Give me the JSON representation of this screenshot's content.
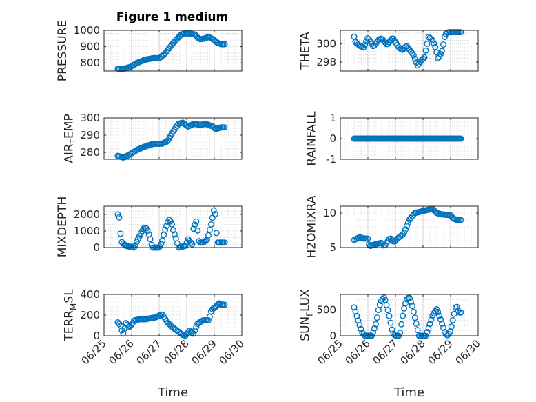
{
  "figure": {
    "title": "Figure 1 medium",
    "xlabel": "Time"
  },
  "style": {
    "marker_color": "#0072BD",
    "axes_color": "#262626",
    "grid_color": "#c8c8c8",
    "background": "#ffffff"
  },
  "chart_data": [
    {
      "type": "scatter",
      "marker": "open-circle",
      "grid": "on",
      "title": "Figure 1 medium",
      "xlabel": "",
      "ylabel": "PRESSURE",
      "xlim": [
        "06/25",
        "06/30"
      ],
      "ylim": [
        750,
        1000
      ],
      "yticks": [
        800,
        900,
        1000
      ],
      "xticks": [
        "06/25",
        "06/26",
        "06/27",
        "06/28",
        "06/29",
        "06/30"
      ],
      "show_xticklabels": false,
      "x_range": [
        "06/25 12:00",
        "06/29 09:00"
      ],
      "keypoints": [
        [
          0,
          765
        ],
        [
          0.2,
          763
        ],
        [
          0.45,
          775
        ],
        [
          0.7,
          800
        ],
        [
          1.0,
          820
        ],
        [
          1.3,
          830
        ],
        [
          1.5,
          828
        ],
        [
          1.7,
          855
        ],
        [
          2.0,
          920
        ],
        [
          2.3,
          975
        ],
        [
          2.5,
          983
        ],
        [
          2.8,
          975
        ],
        [
          2.9,
          955
        ],
        [
          3.0,
          945
        ],
        [
          3.15,
          950
        ],
        [
          3.3,
          960
        ],
        [
          3.5,
          940
        ],
        [
          3.6,
          925
        ],
        [
          3.75,
          915
        ]
      ]
    },
    {
      "type": "scatter",
      "marker": "open-circle",
      "grid": "on",
      "title": "",
      "xlabel": "",
      "ylabel": "THETA",
      "xlim": [
        "06/25",
        "06/30"
      ],
      "ylim": [
        297,
        301.5
      ],
      "yticks": [
        298,
        300
      ],
      "xticks": [
        "06/25",
        "06/26",
        "06/27",
        "06/28",
        "06/29",
        "06/30"
      ],
      "show_xticklabels": false,
      "x_range": [
        "06/25 12:00",
        "06/29 09:00"
      ],
      "keypoints": [
        [
          0,
          300.8
        ],
        [
          0.05,
          300.2
        ],
        [
          0.2,
          299.8
        ],
        [
          0.35,
          299.6
        ],
        [
          0.5,
          300.7
        ],
        [
          0.7,
          299.7
        ],
        [
          0.9,
          300.5
        ],
        [
          1.0,
          300.6
        ],
        [
          1.2,
          299.9
        ],
        [
          1.4,
          300.7
        ],
        [
          1.6,
          299.7
        ],
        [
          1.75,
          299.3
        ],
        [
          1.9,
          299.8
        ],
        [
          2.05,
          299.2
        ],
        [
          2.15,
          298.8
        ],
        [
          2.3,
          297.6
        ],
        [
          2.45,
          298.2
        ],
        [
          2.55,
          298.5
        ],
        [
          2.7,
          300.8
        ],
        [
          2.85,
          300.4
        ],
        [
          2.95,
          299.6
        ],
        [
          3.05,
          298.3
        ],
        [
          3.2,
          299.3
        ],
        [
          3.3,
          301.0
        ],
        [
          3.4,
          301.3
        ]
      ]
    },
    {
      "type": "scatter",
      "marker": "open-circle",
      "grid": "on",
      "title": "",
      "xlabel": "",
      "ylabel": "AIR_TEMP",
      "xlim": [
        "06/25",
        "06/30"
      ],
      "ylim": [
        276,
        300
      ],
      "yticks": [
        280,
        290,
        300
      ],
      "xticks": [
        "06/25",
        "06/26",
        "06/27",
        "06/28",
        "06/29",
        "06/30"
      ],
      "show_xticklabels": false,
      "x_range": [
        "06/25 12:00",
        "06/29 09:00"
      ],
      "keypoints": [
        [
          0,
          278
        ],
        [
          0.2,
          277
        ],
        [
          0.4,
          278.5
        ],
        [
          0.7,
          281.5
        ],
        [
          1.0,
          283.5
        ],
        [
          1.3,
          285
        ],
        [
          1.6,
          285
        ],
        [
          1.8,
          286.5
        ],
        [
          2.0,
          292
        ],
        [
          2.2,
          296.5
        ],
        [
          2.35,
          297.3
        ],
        [
          2.55,
          295
        ],
        [
          2.75,
          296.5
        ],
        [
          3.0,
          296
        ],
        [
          3.2,
          296.5
        ],
        [
          3.45,
          295
        ],
        [
          3.55,
          293.5
        ],
        [
          3.75,
          294.5
        ]
      ]
    },
    {
      "type": "scatter",
      "marker": "open-circle",
      "grid": "on",
      "title": "",
      "xlabel": "",
      "ylabel": "RAINFALL",
      "xlim": [
        "06/25",
        "06/30"
      ],
      "ylim": [
        -1,
        1
      ],
      "yticks": [
        -1,
        0,
        1
      ],
      "xticks": [
        "06/25",
        "06/26",
        "06/27",
        "06/28",
        "06/29",
        "06/30"
      ],
      "show_xticklabels": false,
      "x_range": [
        "06/25 12:00",
        "06/29 09:00"
      ],
      "keypoints": [
        [
          0,
          0
        ],
        [
          3.75,
          0
        ]
      ]
    },
    {
      "type": "scatter",
      "marker": "open-circle",
      "grid": "on",
      "title": "",
      "xlabel": "",
      "ylabel": "MIXDEPTH",
      "xlim": [
        "06/25",
        "06/30"
      ],
      "ylim": [
        0,
        2500
      ],
      "yticks": [
        0,
        1000,
        2000
      ],
      "xticks": [
        "06/25",
        "06/26",
        "06/27",
        "06/28",
        "06/29",
        "06/30"
      ],
      "show_xticklabels": false,
      "x_range": [
        "06/25 12:00",
        "06/29 09:00"
      ],
      "keypoints": [
        [
          0,
          2000
        ],
        [
          0.03,
          2200
        ],
        [
          0.1,
          800
        ],
        [
          0.15,
          300
        ],
        [
          0.3,
          100
        ],
        [
          0.45,
          50
        ],
        [
          0.6,
          0
        ],
        [
          0.7,
          400
        ],
        [
          0.85,
          900
        ],
        [
          0.95,
          1200
        ],
        [
          1.05,
          1150
        ],
        [
          1.15,
          700
        ],
        [
          1.25,
          0
        ],
        [
          1.5,
          0
        ],
        [
          1.6,
          300
        ],
        [
          1.7,
          1000
        ],
        [
          1.85,
          1700
        ],
        [
          1.95,
          1500
        ],
        [
          2.0,
          1100
        ],
        [
          2.1,
          600
        ],
        [
          2.2,
          0
        ],
        [
          2.45,
          100
        ],
        [
          2.55,
          500
        ],
        [
          2.7,
          200
        ],
        [
          2.75,
          1200
        ],
        [
          2.85,
          1600
        ],
        [
          2.95,
          300
        ],
        [
          3.1,
          300
        ],
        [
          3.25,
          500
        ],
        [
          3.4,
          1500
        ],
        [
          3.5,
          2400
        ],
        [
          3.55,
          1800
        ],
        [
          3.6,
          300
        ]
      ]
    },
    {
      "type": "scatter",
      "marker": "open-circle",
      "grid": "on",
      "title": "",
      "xlabel": "",
      "ylabel": "H2OMIXRA",
      "xlim": [
        "06/25",
        "06/30"
      ],
      "ylim": [
        5,
        11
      ],
      "yticks": [
        5,
        10
      ],
      "xticks": [
        "06/25",
        "06/26",
        "06/27",
        "06/28",
        "06/29",
        "06/30"
      ],
      "show_xticklabels": false,
      "x_range": [
        "06/25 12:00",
        "06/29 09:00"
      ],
      "keypoints": [
        [
          0,
          6.1
        ],
        [
          0.2,
          6.5
        ],
        [
          0.35,
          6.3
        ],
        [
          0.5,
          6.3
        ],
        [
          0.55,
          5.2
        ],
        [
          0.8,
          5.5
        ],
        [
          1.0,
          5.7
        ],
        [
          1.1,
          5.2
        ],
        [
          1.3,
          6.4
        ],
        [
          1.45,
          5.8
        ],
        [
          1.6,
          6.4
        ],
        [
          1.8,
          7.0
        ],
        [
          2.0,
          9.0
        ],
        [
          2.2,
          10.0
        ],
        [
          2.5,
          10.3
        ],
        [
          2.7,
          10.5
        ],
        [
          2.85,
          10.6
        ],
        [
          3.0,
          10.0
        ],
        [
          3.2,
          9.8
        ],
        [
          3.5,
          9.7
        ],
        [
          3.6,
          9.2
        ],
        [
          3.75,
          9.0
        ]
      ]
    },
    {
      "type": "scatter",
      "marker": "open-circle",
      "grid": "on",
      "title": "",
      "xlabel": "Time",
      "ylabel": "TERR_MSL",
      "xlim": [
        "06/25",
        "06/30"
      ],
      "ylim": [
        0,
        400
      ],
      "yticks": [
        0,
        200,
        400
      ],
      "xticks": [
        "06/25",
        "06/26",
        "06/27",
        "06/28",
        "06/29",
        "06/30"
      ],
      "show_xticklabels": true,
      "x_range": [
        "06/25 12:00",
        "06/29 09:00"
      ],
      "keypoints": [
        [
          0,
          130
        ],
        [
          0.1,
          100
        ],
        [
          0.15,
          50
        ],
        [
          0.2,
          20
        ],
        [
          0.3,
          130
        ],
        [
          0.4,
          80
        ],
        [
          0.5,
          110
        ],
        [
          0.6,
          150
        ],
        [
          0.8,
          160
        ],
        [
          1.0,
          160
        ],
        [
          1.2,
          170
        ],
        [
          1.4,
          180
        ],
        [
          1.6,
          210
        ],
        [
          1.8,
          130
        ],
        [
          2.0,
          80
        ],
        [
          2.2,
          40
        ],
        [
          2.35,
          10
        ],
        [
          2.45,
          0
        ],
        [
          2.6,
          50
        ],
        [
          2.75,
          20
        ],
        [
          2.9,
          120
        ],
        [
          3.1,
          150
        ],
        [
          3.3,
          150
        ],
        [
          3.4,
          250
        ],
        [
          3.55,
          280
        ],
        [
          3.7,
          320
        ],
        [
          3.75,
          300
        ]
      ]
    },
    {
      "type": "scatter",
      "marker": "open-circle",
      "grid": "on",
      "title": "",
      "xlabel": "Time",
      "ylabel": "SUN_FLUX",
      "xlim": [
        "06/25",
        "06/30"
      ],
      "ylim": [
        0,
        800
      ],
      "yticks": [
        0,
        500
      ],
      "xticks": [
        "06/25",
        "06/26",
        "06/27",
        "06/28",
        "06/29",
        "06/30"
      ],
      "show_xticklabels": true,
      "x_range": [
        "06/25 12:00",
        "06/29 09:00"
      ],
      "keypoints": [
        [
          0,
          550
        ],
        [
          0.1,
          380
        ],
        [
          0.2,
          200
        ],
        [
          0.3,
          50
        ],
        [
          0.4,
          0
        ],
        [
          0.65,
          0
        ],
        [
          0.8,
          250
        ],
        [
          0.9,
          550
        ],
        [
          1.0,
          700
        ],
        [
          1.1,
          750
        ],
        [
          1.25,
          450
        ],
        [
          1.4,
          50
        ],
        [
          1.5,
          0
        ],
        [
          1.65,
          0
        ],
        [
          1.8,
          500
        ],
        [
          1.9,
          700
        ],
        [
          2.0,
          750
        ],
        [
          2.1,
          600
        ],
        [
          2.25,
          250
        ],
        [
          2.35,
          0
        ],
        [
          2.6,
          0
        ],
        [
          2.7,
          150
        ],
        [
          2.85,
          400
        ],
        [
          3.0,
          520
        ],
        [
          3.15,
          300
        ],
        [
          3.3,
          50
        ],
        [
          3.4,
          0
        ],
        [
          3.5,
          100
        ],
        [
          3.6,
          350
        ],
        [
          3.7,
          600
        ],
        [
          3.8,
          450
        ]
      ]
    }
  ]
}
